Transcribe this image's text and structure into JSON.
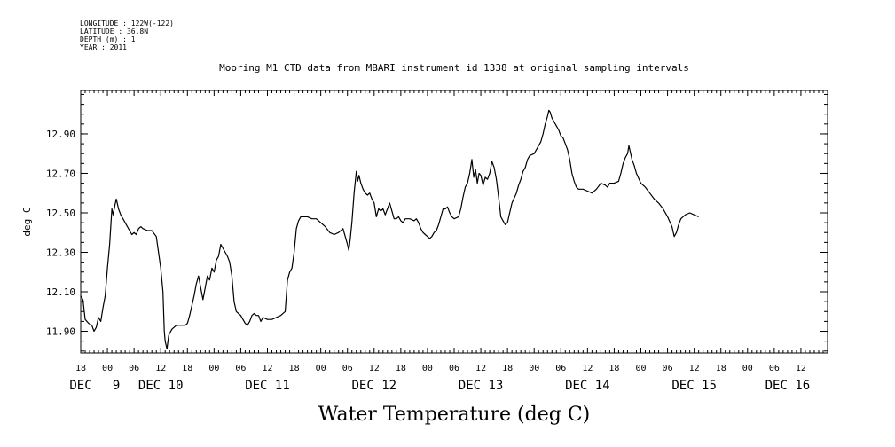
{
  "header": {
    "longitude": "LONGITUDE : 122W(-122)",
    "latitude": "LATITUDE : 36.8N",
    "depth": "DEPTH (m) : 1",
    "year": "YEAR : 2011"
  },
  "chart_data": {
    "type": "line",
    "title": "Mooring M1 CTD data from MBARI instrument id 1338 at original sampling intervals",
    "xlabel": "Water Temperature (deg C)",
    "ylabel": "deg C",
    "x_unit": "hours since DEC 8 18:00",
    "xlim": [
      0,
      168
    ],
    "ylim": [
      11.79,
      13.12
    ],
    "y_ticks": [
      11.9,
      12.1,
      12.3,
      12.5,
      12.7,
      12.9
    ],
    "y_tick_labels": [
      "11.90",
      "12.10",
      "12.30",
      "12.50",
      "12.70",
      "12.90"
    ],
    "x_hour_ticks": [
      {
        "h": 0,
        "label": "18"
      },
      {
        "h": 6,
        "label": "00"
      },
      {
        "h": 12,
        "label": "06"
      },
      {
        "h": 18,
        "label": "12"
      },
      {
        "h": 24,
        "label": "18"
      },
      {
        "h": 30,
        "label": "00"
      },
      {
        "h": 36,
        "label": "06"
      },
      {
        "h": 42,
        "label": "12"
      },
      {
        "h": 48,
        "label": "18"
      },
      {
        "h": 54,
        "label": "00"
      },
      {
        "h": 60,
        "label": "06"
      },
      {
        "h": 66,
        "label": "12"
      },
      {
        "h": 72,
        "label": "18"
      },
      {
        "h": 78,
        "label": "00"
      },
      {
        "h": 84,
        "label": "06"
      },
      {
        "h": 90,
        "label": "12"
      },
      {
        "h": 96,
        "label": "18"
      },
      {
        "h": 102,
        "label": "00"
      },
      {
        "h": 108,
        "label": "06"
      },
      {
        "h": 114,
        "label": "12"
      },
      {
        "h": 120,
        "label": "18"
      },
      {
        "h": 126,
        "label": "00"
      },
      {
        "h": 132,
        "label": "06"
      },
      {
        "h": 138,
        "label": "12"
      },
      {
        "h": 144,
        "label": "18"
      },
      {
        "h": 150,
        "label": "00"
      },
      {
        "h": 156,
        "label": "06"
      },
      {
        "h": 162,
        "label": "12"
      }
    ],
    "x_day_labels": [
      {
        "h": 0,
        "label": "DEC"
      },
      {
        "h": 8,
        "label": "9"
      },
      {
        "h": 18,
        "label": "DEC 10"
      },
      {
        "h": 42,
        "label": "DEC 11"
      },
      {
        "h": 66,
        "label": "DEC 12"
      },
      {
        "h": 90,
        "label": "DEC 13"
      },
      {
        "h": 114,
        "label": "DEC 14"
      },
      {
        "h": 138,
        "label": "DEC 15"
      },
      {
        "h": 159,
        "label": "DEC 16"
      }
    ],
    "grid": false,
    "series": [
      {
        "color": "#000000",
        "points": [
          [
            0,
            12.08
          ],
          [
            0.5,
            12.06
          ],
          [
            1,
            11.96
          ],
          [
            1.8,
            11.94
          ],
          [
            2.5,
            11.93
          ],
          [
            3,
            11.9
          ],
          [
            3.5,
            11.92
          ],
          [
            4,
            11.97
          ],
          [
            4.5,
            11.95
          ],
          [
            5,
            12.02
          ],
          [
            5.5,
            12.08
          ],
          [
            6,
            12.22
          ],
          [
            6.5,
            12.34
          ],
          [
            7,
            12.52
          ],
          [
            7.3,
            12.49
          ],
          [
            7.7,
            12.54
          ],
          [
            8,
            12.57
          ],
          [
            8.5,
            12.52
          ],
          [
            9,
            12.49
          ],
          [
            10,
            12.45
          ],
          [
            11,
            12.41
          ],
          [
            11.5,
            12.39
          ],
          [
            12,
            12.4
          ],
          [
            12.5,
            12.39
          ],
          [
            13,
            12.42
          ],
          [
            13.5,
            12.43
          ],
          [
            14,
            12.42
          ],
          [
            15,
            12.41
          ],
          [
            16,
            12.41
          ],
          [
            17,
            12.38
          ],
          [
            17.5,
            12.3
          ],
          [
            18,
            12.22
          ],
          [
            18.5,
            12.1
          ],
          [
            18.8,
            11.9
          ],
          [
            19,
            11.85
          ],
          [
            19.4,
            11.81
          ],
          [
            19.8,
            11.88
          ],
          [
            20.5,
            11.91
          ],
          [
            21.5,
            11.93
          ],
          [
            22.5,
            11.93
          ],
          [
            23.5,
            11.93
          ],
          [
            24,
            11.94
          ],
          [
            24.5,
            11.98
          ],
          [
            25,
            12.03
          ],
          [
            25.5,
            12.08
          ],
          [
            26,
            12.14
          ],
          [
            26.5,
            12.18
          ],
          [
            27,
            12.12
          ],
          [
            27.5,
            12.06
          ],
          [
            28,
            12.12
          ],
          [
            28.5,
            12.18
          ],
          [
            29,
            12.16
          ],
          [
            29.5,
            12.22
          ],
          [
            30,
            12.2
          ],
          [
            30.5,
            12.26
          ],
          [
            31,
            12.28
          ],
          [
            31.5,
            12.34
          ],
          [
            32,
            12.32
          ],
          [
            32.5,
            12.3
          ],
          [
            33,
            12.28
          ],
          [
            33.5,
            12.25
          ],
          [
            34,
            12.18
          ],
          [
            34.5,
            12.05
          ],
          [
            35,
            12.0
          ],
          [
            35.5,
            11.99
          ],
          [
            36,
            11.98
          ],
          [
            36.5,
            11.96
          ],
          [
            37,
            11.94
          ],
          [
            37.5,
            11.93
          ],
          [
            38,
            11.95
          ],
          [
            38.5,
            11.98
          ],
          [
            39,
            11.99
          ],
          [
            39.5,
            11.98
          ],
          [
            40,
            11.98
          ],
          [
            40.5,
            11.95
          ],
          [
            41,
            11.97
          ],
          [
            42,
            11.96
          ],
          [
            43,
            11.96
          ],
          [
            44,
            11.97
          ],
          [
            45,
            11.98
          ],
          [
            46,
            12.0
          ],
          [
            46.5,
            12.16
          ],
          [
            47,
            12.2
          ],
          [
            47.5,
            12.22
          ],
          [
            48,
            12.3
          ],
          [
            48.5,
            12.42
          ],
          [
            49,
            12.46
          ],
          [
            49.5,
            12.48
          ],
          [
            50,
            12.48
          ],
          [
            51,
            12.48
          ],
          [
            52,
            12.47
          ],
          [
            53,
            12.47
          ],
          [
            54,
            12.45
          ],
          [
            55,
            12.43
          ],
          [
            56,
            12.4
          ],
          [
            57,
            12.39
          ],
          [
            58,
            12.4
          ],
          [
            59,
            12.42
          ],
          [
            59.5,
            12.38
          ],
          [
            60,
            12.34
          ],
          [
            60.3,
            12.31
          ],
          [
            60.6,
            12.36
          ],
          [
            61,
            12.45
          ],
          [
            61.5,
            12.6
          ],
          [
            62,
            12.71
          ],
          [
            62.3,
            12.66
          ],
          [
            62.6,
            12.69
          ],
          [
            63,
            12.65
          ],
          [
            63.5,
            12.62
          ],
          [
            64,
            12.6
          ],
          [
            64.5,
            12.59
          ],
          [
            65,
            12.6
          ],
          [
            65.5,
            12.57
          ],
          [
            66,
            12.55
          ],
          [
            66.5,
            12.48
          ],
          [
            67,
            12.52
          ],
          [
            67.5,
            12.51
          ],
          [
            68,
            12.52
          ],
          [
            68.5,
            12.49
          ],
          [
            69,
            12.52
          ],
          [
            69.5,
            12.55
          ],
          [
            70,
            12.51
          ],
          [
            70.5,
            12.47
          ],
          [
            71,
            12.47
          ],
          [
            71.5,
            12.48
          ],
          [
            72,
            12.46
          ],
          [
            72.5,
            12.45
          ],
          [
            73,
            12.47
          ],
          [
            74,
            12.47
          ],
          [
            75,
            12.46
          ],
          [
            75.5,
            12.47
          ],
          [
            76,
            12.45
          ],
          [
            76.5,
            12.42
          ],
          [
            77,
            12.4
          ],
          [
            77.5,
            12.39
          ],
          [
            78,
            12.38
          ],
          [
            78.5,
            12.37
          ],
          [
            79,
            12.38
          ],
          [
            79.5,
            12.4
          ],
          [
            80,
            12.41
          ],
          [
            80.5,
            12.44
          ],
          [
            81,
            12.48
          ],
          [
            81.5,
            12.52
          ],
          [
            82,
            12.52
          ],
          [
            82.5,
            12.53
          ],
          [
            83,
            12.5
          ],
          [
            83.5,
            12.48
          ],
          [
            84,
            12.47
          ],
          [
            85,
            12.48
          ],
          [
            85.5,
            12.52
          ],
          [
            86,
            12.58
          ],
          [
            86.5,
            12.63
          ],
          [
            87,
            12.65
          ],
          [
            87.5,
            12.7
          ],
          [
            88,
            12.77
          ],
          [
            88.4,
            12.68
          ],
          [
            88.8,
            12.72
          ],
          [
            89.2,
            12.65
          ],
          [
            89.6,
            12.7
          ],
          [
            90,
            12.69
          ],
          [
            90.5,
            12.64
          ],
          [
            91,
            12.68
          ],
          [
            91.5,
            12.67
          ],
          [
            92,
            12.7
          ],
          [
            92.5,
            12.76
          ],
          [
            93,
            12.73
          ],
          [
            93.5,
            12.67
          ],
          [
            94,
            12.58
          ],
          [
            94.5,
            12.48
          ],
          [
            95,
            12.46
          ],
          [
            95.5,
            12.44
          ],
          [
            96,
            12.45
          ],
          [
            96.5,
            12.5
          ],
          [
            97,
            12.55
          ],
          [
            98,
            12.6
          ],
          [
            98.5,
            12.64
          ],
          [
            99,
            12.67
          ],
          [
            99.5,
            12.71
          ],
          [
            100,
            12.73
          ],
          [
            100.5,
            12.77
          ],
          [
            101,
            12.79
          ],
          [
            102,
            12.8
          ],
          [
            102.5,
            12.82
          ],
          [
            103,
            12.84
          ],
          [
            103.5,
            12.86
          ],
          [
            104,
            12.9
          ],
          [
            104.5,
            12.95
          ],
          [
            105,
            12.99
          ],
          [
            105.3,
            13.02
          ],
          [
            105.6,
            13.01
          ],
          [
            106,
            12.98
          ],
          [
            106.5,
            12.96
          ],
          [
            107,
            12.94
          ],
          [
            107.5,
            12.92
          ],
          [
            108,
            12.89
          ],
          [
            108.5,
            12.88
          ],
          [
            109,
            12.85
          ],
          [
            109.5,
            12.82
          ],
          [
            110,
            12.77
          ],
          [
            110.5,
            12.7
          ],
          [
            111,
            12.66
          ],
          [
            111.5,
            12.63
          ],
          [
            112,
            12.62
          ],
          [
            113,
            12.62
          ],
          [
            114,
            12.61
          ],
          [
            115,
            12.6
          ],
          [
            116,
            12.62
          ],
          [
            117,
            12.65
          ],
          [
            118,
            12.64
          ],
          [
            118.5,
            12.63
          ],
          [
            119,
            12.65
          ],
          [
            120,
            12.65
          ],
          [
            121,
            12.66
          ],
          [
            121.5,
            12.7
          ],
          [
            122,
            12.75
          ],
          [
            122.5,
            12.78
          ],
          [
            123,
            12.8
          ],
          [
            123.3,
            12.84
          ],
          [
            123.6,
            12.81
          ],
          [
            124,
            12.77
          ],
          [
            124.5,
            12.74
          ],
          [
            125,
            12.7
          ],
          [
            126,
            12.65
          ],
          [
            127,
            12.63
          ],
          [
            128,
            12.6
          ],
          [
            129,
            12.57
          ],
          [
            130,
            12.55
          ],
          [
            131,
            12.52
          ],
          [
            132,
            12.48
          ],
          [
            133,
            12.43
          ],
          [
            133.5,
            12.38
          ],
          [
            134,
            12.4
          ],
          [
            134.5,
            12.44
          ],
          [
            135,
            12.47
          ],
          [
            136,
            12.49
          ],
          [
            137,
            12.5
          ],
          [
            138,
            12.49
          ],
          [
            139,
            12.48
          ]
        ]
      }
    ]
  }
}
